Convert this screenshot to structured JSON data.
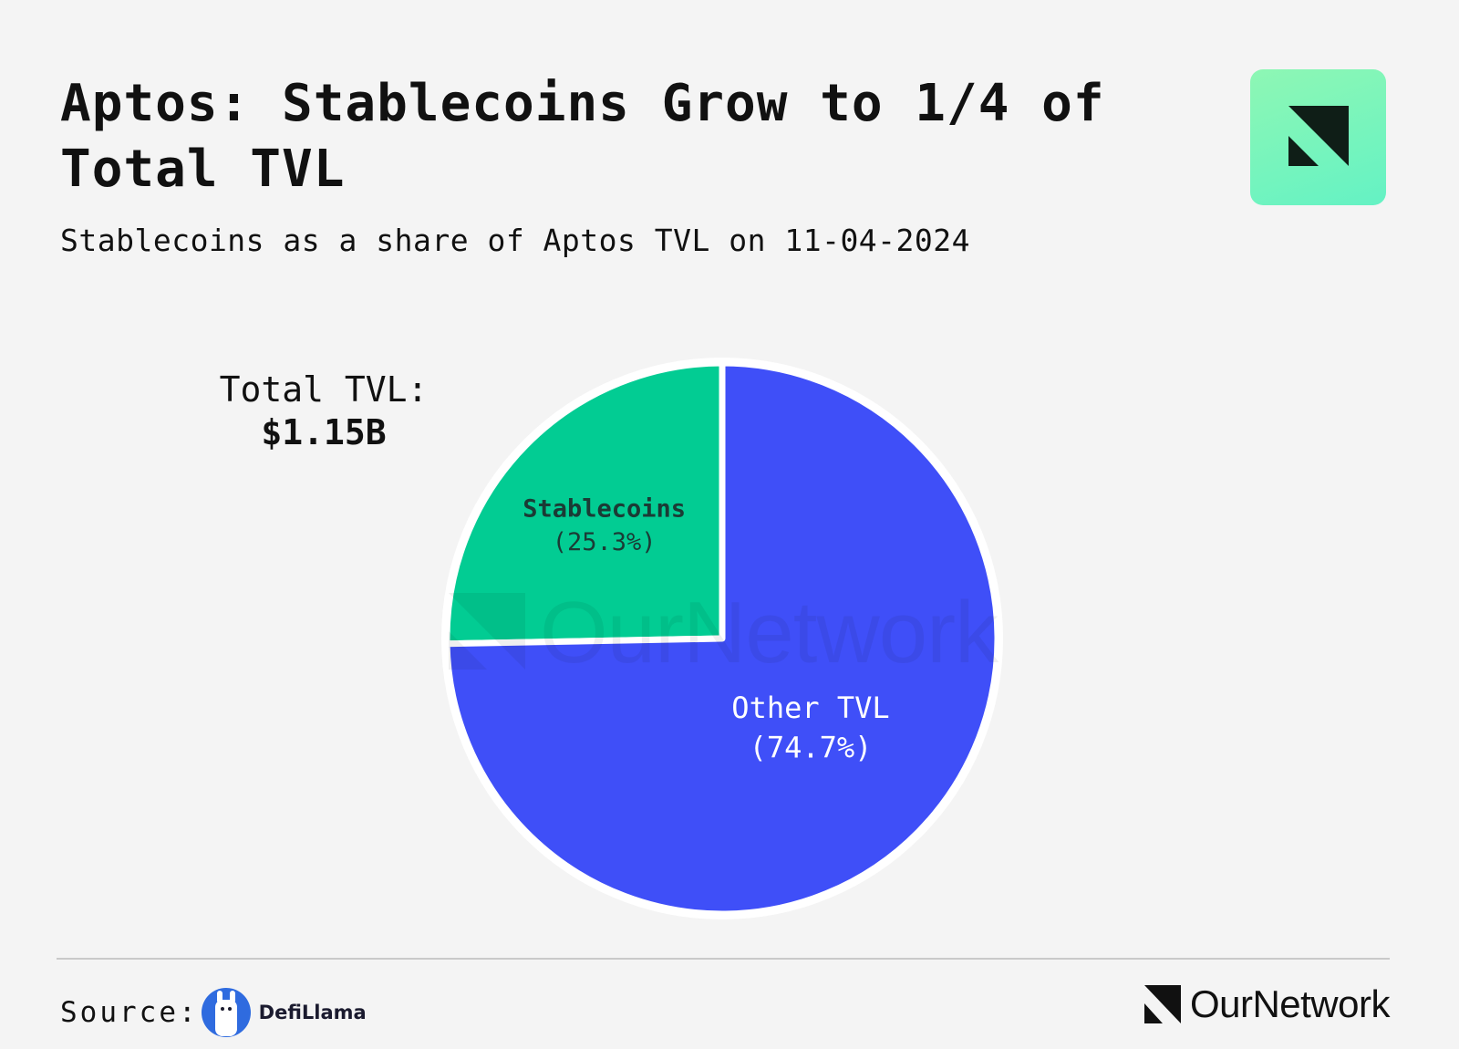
{
  "title": "Aptos: Stablecoins Grow to 1/4 of Total TVL",
  "subtitle": "Stablecoins as a share of Aptos TVL on 11-04-2024",
  "total_tvl": {
    "label": "Total TVL:",
    "value": "$1.15B"
  },
  "source": {
    "label": "Source:",
    "provider": "DefiLlama"
  },
  "brand": {
    "name": "OurNetwork",
    "badge_color": "#7ff5bd"
  },
  "watermark": "OurNetwork",
  "colors": {
    "background": "#f4f4f4",
    "stablecoins": "#02cc93",
    "other_tvl": "#3f4ff8",
    "pie_border": "#ffffff",
    "dark_label": "#1b3b35",
    "light_label": "#ffffff"
  },
  "chart_data": {
    "type": "pie",
    "title": "Aptos: Stablecoins Grow to 1/4 of Total TVL",
    "subtitle": "Stablecoins as a share of Aptos TVL on 11-04-2024",
    "slices": [
      {
        "label": "Stablecoins",
        "value": 25.3,
        "display": "(25.3%)",
        "color": "#02cc93"
      },
      {
        "label": "Other TVL",
        "value": 74.7,
        "display": "(74.7%)",
        "color": "#3f4ff8"
      }
    ]
  }
}
